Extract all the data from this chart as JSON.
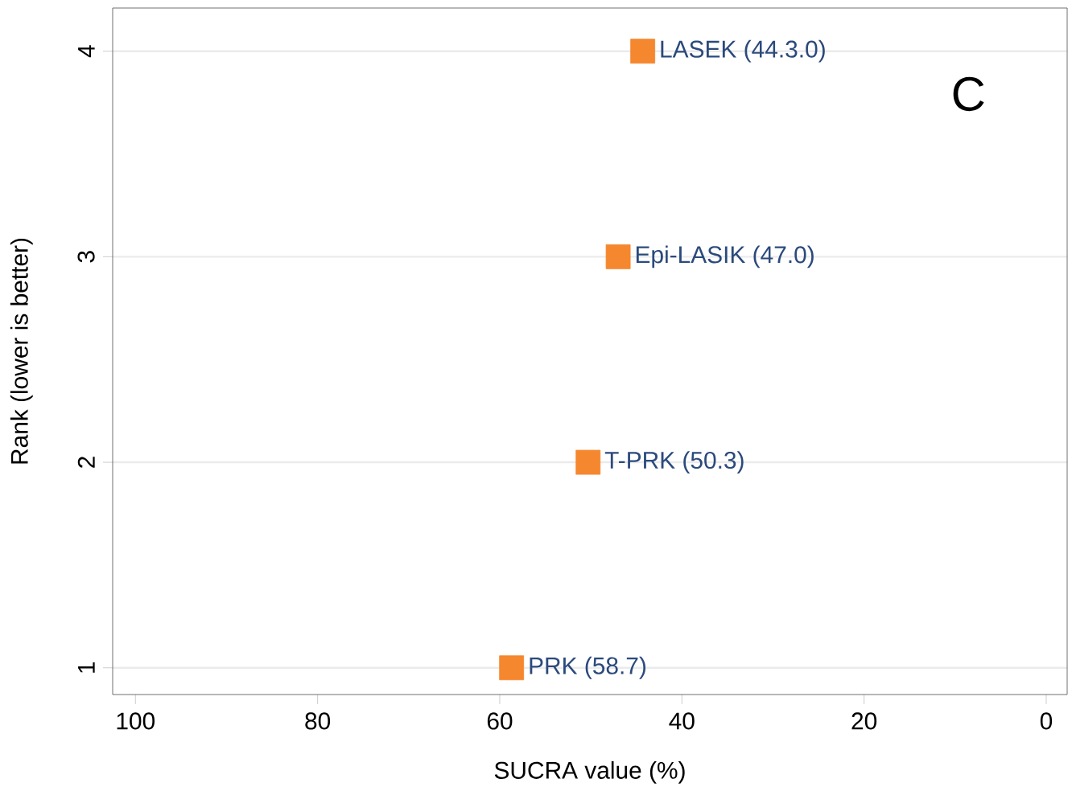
{
  "chart_data": {
    "type": "scatter",
    "xlabel": "SUCRA value (%)",
    "ylabel": "Rank (lower is better)",
    "xlim": [
      102.5,
      -2.3
    ],
    "xticks": [
      100,
      80,
      60,
      40,
      20,
      0
    ],
    "ylim": [
      0.87,
      4.21
    ],
    "yticks": [
      1,
      2,
      3,
      4
    ],
    "grid": "y",
    "marker": "square",
    "series": [
      {
        "color": "#f5872e",
        "x": [
          58.7,
          50.3,
          47.0,
          44.3
        ],
        "values": [
          1,
          2,
          3,
          4
        ]
      }
    ],
    "annotations": [
      {
        "text": "PRK (58.7)",
        "x": 58.7,
        "y": 1
      },
      {
        "text": "T-PRK (50.3)",
        "x": 50.3,
        "y": 2
      },
      {
        "text": "Epi-LASIK (47.0)",
        "x": 47.0,
        "y": 3
      },
      {
        "text": "LASEK (44.3.0)",
        "x": 44.3,
        "y": 4
      },
      "C"
    ]
  }
}
